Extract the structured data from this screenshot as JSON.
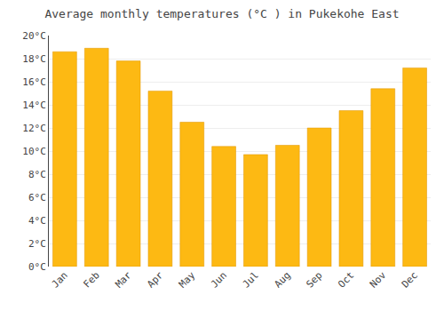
{
  "chart_data": {
    "type": "bar",
    "title": "Average monthly temperatures (°C ) in Pukekohe East",
    "categories": [
      "Jan",
      "Feb",
      "Mar",
      "Apr",
      "May",
      "Jun",
      "Jul",
      "Aug",
      "Sep",
      "Oct",
      "Nov",
      "Dec"
    ],
    "values": [
      18.6,
      18.9,
      17.8,
      15.2,
      12.5,
      10.4,
      9.7,
      10.5,
      12.0,
      13.5,
      15.4,
      17.2
    ],
    "color": "#FDB913",
    "ylim": [
      0,
      20
    ],
    "yticks": [
      {
        "value": 0,
        "label": "0°C"
      },
      {
        "value": 2,
        "label": "2°C"
      },
      {
        "value": 4,
        "label": "4°C"
      },
      {
        "value": 6,
        "label": "6°C"
      },
      {
        "value": 8,
        "label": "8°C"
      },
      {
        "value": 10,
        "label": "10°C"
      },
      {
        "value": 12,
        "label": "12°C"
      },
      {
        "value": 14,
        "label": "14°C"
      },
      {
        "value": 16,
        "label": "16°C"
      },
      {
        "value": 18,
        "label": "18°C"
      },
      {
        "value": 20,
        "label": "20°C"
      }
    ],
    "grid": true
  }
}
